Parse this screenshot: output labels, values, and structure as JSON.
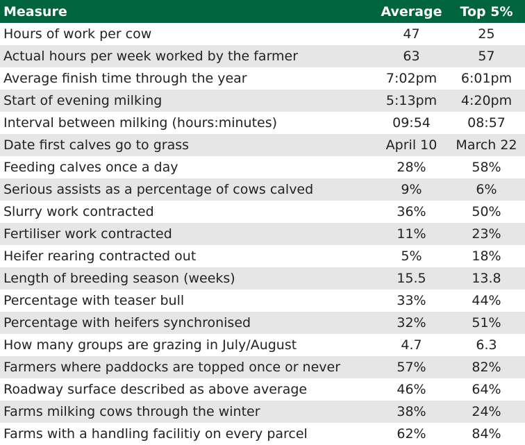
{
  "table": {
    "header": [
      "Measure",
      "Average",
      "Top 5%"
    ],
    "rows": [
      [
        "Hours of work per cow",
        "47",
        "25"
      ],
      [
        "Actual hours per week worked by the farmer",
        "63",
        "57"
      ],
      [
        "Average finish time through the year",
        "7:02pm",
        "6:01pm"
      ],
      [
        "Start of evening milking",
        "5:13pm",
        "4:20pm"
      ],
      [
        "Interval between milking (hours:minutes)",
        "09:54",
        "08:57"
      ],
      [
        "Date first calves go to grass",
        "April 10",
        "March 22"
      ],
      [
        "Feeding calves once a day",
        "28%",
        "58%"
      ],
      [
        "Serious assists as a percentage of cows calved",
        "9%",
        "6%"
      ],
      [
        "Slurry work contracted",
        "36%",
        "50%"
      ],
      [
        "Fertiliser work contracted",
        "11%",
        "23%"
      ],
      [
        "Heifer rearing contracted out",
        "5%",
        "18%"
      ],
      [
        "Length of breeding season (weeks)",
        "15.5",
        "13.8"
      ],
      [
        "Percentage with teaser bull",
        "33%",
        "44%"
      ],
      [
        "Percentage with heifers synchronised",
        "32%",
        "51%"
      ],
      [
        "How many groups are grazing in July/August",
        "4.7",
        "6.3"
      ],
      [
        "Farmers where paddocks are topped once or never",
        "57%",
        "82%"
      ],
      [
        "Roadway surface described as above average",
        "46%",
        "64%"
      ],
      [
        "Farms milking cows through the winter",
        "38%",
        "24%"
      ],
      [
        "Farms with a handling facilitiy on every parcel",
        "62%",
        "84%"
      ]
    ]
  }
}
